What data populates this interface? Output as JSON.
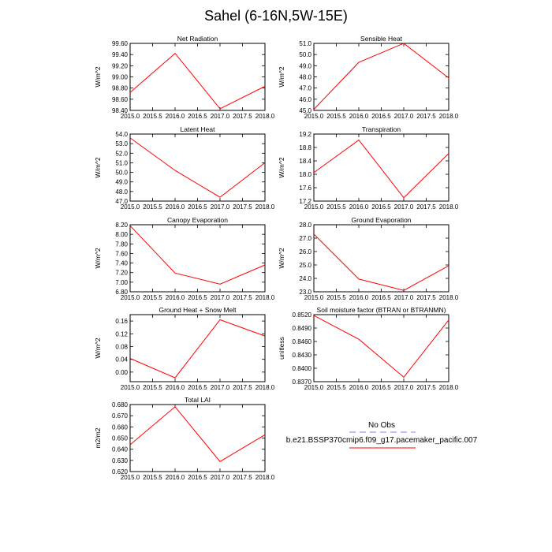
{
  "title": "Sahel (6-16N,5W-15E)",
  "colors": {
    "model_line": "#ff0000",
    "obs_line": "#aaaaff",
    "axis": "#000000"
  },
  "legend": {
    "obs_label": "No Obs",
    "model_label": "b.e21.BSSP370cmip6.f09_g17.pacemaker_pacific.007"
  },
  "chart_data": [
    {
      "type": "line",
      "title": "Net Radiation",
      "ylabel": "W/m^2",
      "x": [
        2015.0,
        2016.0,
        2017.0,
        2018.0
      ],
      "values": [
        98.72,
        99.42,
        98.43,
        98.83
      ],
      "xlim": [
        2015.0,
        2018.0
      ],
      "ylim": [
        98.4,
        99.6
      ],
      "xticks": [
        "2015.0",
        "2015.5",
        "2016.0",
        "2016.5",
        "2017.0",
        "2017.5",
        "2018.0"
      ],
      "yticks": [
        "98.40",
        "98.60",
        "98.80",
        "99.00",
        "99.20",
        "99.40",
        "99.60"
      ],
      "ytick_values": [
        98.4,
        98.6,
        98.8,
        99.0,
        99.2,
        99.4,
        99.6
      ]
    },
    {
      "type": "line",
      "title": "Sensible Heat",
      "ylabel": "W/m^2",
      "x": [
        2015.0,
        2016.0,
        2017.0,
        2018.0
      ],
      "values": [
        45.1,
        49.3,
        51.0,
        47.9
      ],
      "xlim": [
        2015.0,
        2018.0
      ],
      "ylim": [
        45.0,
        51.0
      ],
      "xticks": [
        "2015.0",
        "2015.5",
        "2016.0",
        "2016.5",
        "2017.0",
        "2017.5",
        "2018.0"
      ],
      "yticks": [
        "45.0",
        "46.0",
        "47.0",
        "48.0",
        "49.0",
        "50.0",
        "51.0"
      ],
      "ytick_values": [
        45.0,
        46.0,
        47.0,
        48.0,
        49.0,
        50.0,
        51.0
      ]
    },
    {
      "type": "line",
      "title": "Latent Heat",
      "ylabel": "W/m^2",
      "x": [
        2015.0,
        2016.0,
        2017.0,
        2018.0
      ],
      "values": [
        53.6,
        50.2,
        47.4,
        51.0
      ],
      "xlim": [
        2015.0,
        2018.0
      ],
      "ylim": [
        47.0,
        54.0
      ],
      "xticks": [
        "2015.0",
        "2015.5",
        "2016.0",
        "2016.5",
        "2017.0",
        "2017.5",
        "2018.0"
      ],
      "yticks": [
        "47.0",
        "48.0",
        "49.0",
        "50.0",
        "51.0",
        "52.0",
        "53.0",
        "54.0"
      ],
      "ytick_values": [
        47.0,
        48.0,
        49.0,
        50.0,
        51.0,
        52.0,
        53.0,
        54.0
      ]
    },
    {
      "type": "line",
      "title": "Transpiration",
      "ylabel": "W/m^2",
      "x": [
        2015.0,
        2016.0,
        2017.0,
        2018.0
      ],
      "values": [
        18.05,
        19.02,
        17.3,
        18.62
      ],
      "xlim": [
        2015.0,
        2018.0
      ],
      "ylim": [
        17.2,
        19.2
      ],
      "xticks": [
        "2015.0",
        "2015.5",
        "2016.0",
        "2016.5",
        "2017.0",
        "2017.5",
        "2018.0"
      ],
      "yticks": [
        "17.2",
        "17.6",
        "18.0",
        "18.4",
        "18.8",
        "19.2"
      ],
      "ytick_values": [
        17.2,
        17.6,
        18.0,
        18.4,
        18.8,
        19.2
      ]
    },
    {
      "type": "line",
      "title": "Canopy Evaporation",
      "ylabel": "W/m^2",
      "x": [
        2015.0,
        2016.0,
        2017.0,
        2018.0
      ],
      "values": [
        8.18,
        7.19,
        6.96,
        7.36
      ],
      "xlim": [
        2015.0,
        2018.0
      ],
      "ylim": [
        6.8,
        8.2
      ],
      "xticks": [
        "2015.0",
        "2015.5",
        "2016.0",
        "2016.5",
        "2017.0",
        "2017.5",
        "2018.0"
      ],
      "yticks": [
        "6.80",
        "7.00",
        "7.20",
        "7.40",
        "7.60",
        "7.80",
        "8.00",
        "8.20"
      ],
      "ytick_values": [
        6.8,
        7.0,
        7.2,
        7.4,
        7.6,
        7.8,
        8.0,
        8.2
      ]
    },
    {
      "type": "line",
      "title": "Ground Evaporation",
      "ylabel": "W/m^2",
      "x": [
        2015.0,
        2016.0,
        2017.0,
        2018.0
      ],
      "values": [
        27.3,
        23.95,
        23.1,
        24.95
      ],
      "xlim": [
        2015.0,
        2018.0
      ],
      "ylim": [
        23.0,
        28.0
      ],
      "xticks": [
        "2015.0",
        "2015.5",
        "2016.0",
        "2016.5",
        "2017.0",
        "2017.5",
        "2018.0"
      ],
      "yticks": [
        "23.0",
        "24.0",
        "25.0",
        "26.0",
        "27.0",
        "28.0"
      ],
      "ytick_values": [
        23.0,
        24.0,
        25.0,
        26.0,
        27.0,
        28.0
      ]
    },
    {
      "type": "line",
      "title": "Ground Heat + Snow Melt",
      "ylabel": "W/m^2",
      "x": [
        2015.0,
        2016.0,
        2017.0,
        2018.0
      ],
      "values": [
        0.043,
        -0.018,
        0.164,
        0.113
      ],
      "xlim": [
        2015.0,
        2018.0
      ],
      "ylim": [
        -0.03,
        0.18
      ],
      "xticks": [
        "2015.0",
        "2015.5",
        "2016.0",
        "2016.5",
        "2017.0",
        "2017.5",
        "2018.0"
      ],
      "yticks": [
        "0.00",
        "0.04",
        "0.08",
        "0.12",
        "0.16"
      ],
      "ytick_values": [
        0.0,
        0.04,
        0.08,
        0.12,
        0.16
      ]
    },
    {
      "type": "line",
      "title": "Soil moisture factor (BTRAN or BTRANMN)",
      "ylabel": "unitless",
      "x": [
        2015.0,
        2016.0,
        2017.0,
        2018.0
      ],
      "values": [
        0.8518,
        0.8465,
        0.838,
        0.8508
      ],
      "xlim": [
        2015.0,
        2018.0
      ],
      "ylim": [
        0.837,
        0.852
      ],
      "xticks": [
        "2015.0",
        "2015.5",
        "2016.0",
        "2016.5",
        "2017.0",
        "2017.5",
        "2018.0"
      ],
      "yticks": [
        "0.8370",
        "0.8400",
        "0.8430",
        "0.8460",
        "0.8490",
        "0.8520"
      ],
      "ytick_values": [
        0.837,
        0.84,
        0.843,
        0.846,
        0.849,
        0.852
      ]
    },
    {
      "type": "line",
      "title": "Total LAI",
      "ylabel": "m2/m2",
      "x": [
        2015.0,
        2016.0,
        2017.0,
        2018.0
      ],
      "values": [
        0.644,
        0.678,
        0.629,
        0.653
      ],
      "xlim": [
        2015.0,
        2018.0
      ],
      "ylim": [
        0.62,
        0.68
      ],
      "xticks": [
        "2015.0",
        "2015.5",
        "2016.0",
        "2016.5",
        "2017.0",
        "2017.5",
        "2018.0"
      ],
      "yticks": [
        "0.620",
        "0.630",
        "0.640",
        "0.650",
        "0.660",
        "0.670",
        "0.680"
      ],
      "ytick_values": [
        0.62,
        0.63,
        0.64,
        0.65,
        0.66,
        0.67,
        0.68
      ]
    }
  ]
}
